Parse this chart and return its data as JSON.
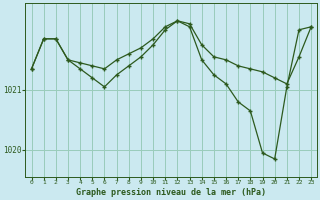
{
  "xlabel": "Graphe pression niveau de la mer (hPa)",
  "background_color": "#cbe9f0",
  "grid_color": "#99ccbb",
  "line_color": "#2d5a1e",
  "hours": [
    0,
    1,
    2,
    3,
    4,
    5,
    6,
    7,
    8,
    9,
    10,
    11,
    12,
    13,
    14,
    15,
    16,
    17,
    18,
    19,
    20,
    21,
    22,
    23
  ],
  "series1": [
    1021.35,
    1021.85,
    1021.85,
    1021.5,
    1021.45,
    1021.4,
    1021.35,
    1021.5,
    1021.6,
    1021.7,
    1021.85,
    1022.05,
    1022.15,
    1022.1,
    1021.75,
    1021.55,
    1021.5,
    1021.4,
    1021.35,
    1021.3,
    1021.2,
    1021.1,
    1021.55,
    1022.05
  ],
  "series2": [
    1021.35,
    1021.85,
    1021.85,
    1021.5,
    1021.35,
    1021.2,
    1021.05,
    1021.25,
    1021.4,
    1021.55,
    1021.75,
    1022.0,
    1022.15,
    1022.05,
    1021.5,
    1021.25,
    1021.1,
    1020.8,
    1020.65,
    1019.95,
    1019.85,
    1021.05,
    1022.0,
    1022.05
  ],
  "ylim": [
    1019.55,
    1022.45
  ],
  "yticks": [
    1020.0,
    1021.0
  ],
  "xlim": [
    -0.5,
    23.5
  ]
}
